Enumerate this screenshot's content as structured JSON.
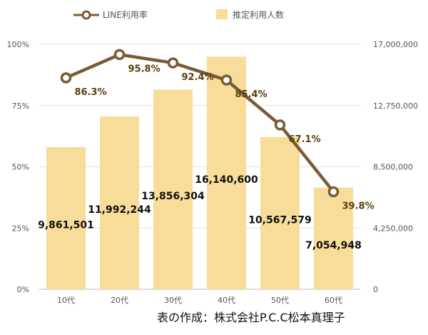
{
  "chart_data": {
    "type": "bar",
    "categories": [
      "10代",
      "20代",
      "30代",
      "40代",
      "50代",
      "60代"
    ],
    "series": [
      {
        "name": "推定利用人数",
        "type": "bar",
        "axis": "right",
        "values": [
          9861501,
          11992244,
          13856304,
          16140600,
          10567579,
          7054948
        ],
        "labels": [
          "9,861,501",
          "11,992,244",
          "13,856,304",
          "16,140,600",
          "10,567,579",
          "7,054,948"
        ],
        "color": "#f8dc9a"
      },
      {
        "name": "LINE利用率",
        "type": "line",
        "axis": "left",
        "values": [
          86.3,
          95.8,
          92.4,
          85.4,
          67.1,
          39.8
        ],
        "labels": [
          "86.3%",
          "95.8%",
          "92.4%",
          "85.4%",
          "67.1%",
          "39.8%"
        ],
        "color": "#7a5c34"
      }
    ],
    "left_axis": {
      "ylim": [
        0,
        100
      ],
      "ticks": [
        "0%",
        "25%",
        "50%",
        "75%",
        "100%"
      ]
    },
    "right_axis": {
      "ylim": [
        0,
        17000000
      ],
      "ticks": [
        "0",
        "4,250,000",
        "8,500,000",
        "12,750,000",
        "17,000,000"
      ]
    },
    "grid": true,
    "legend_position": "top",
    "credit": "表の作成：株式会社P.C.C松本真理子"
  }
}
